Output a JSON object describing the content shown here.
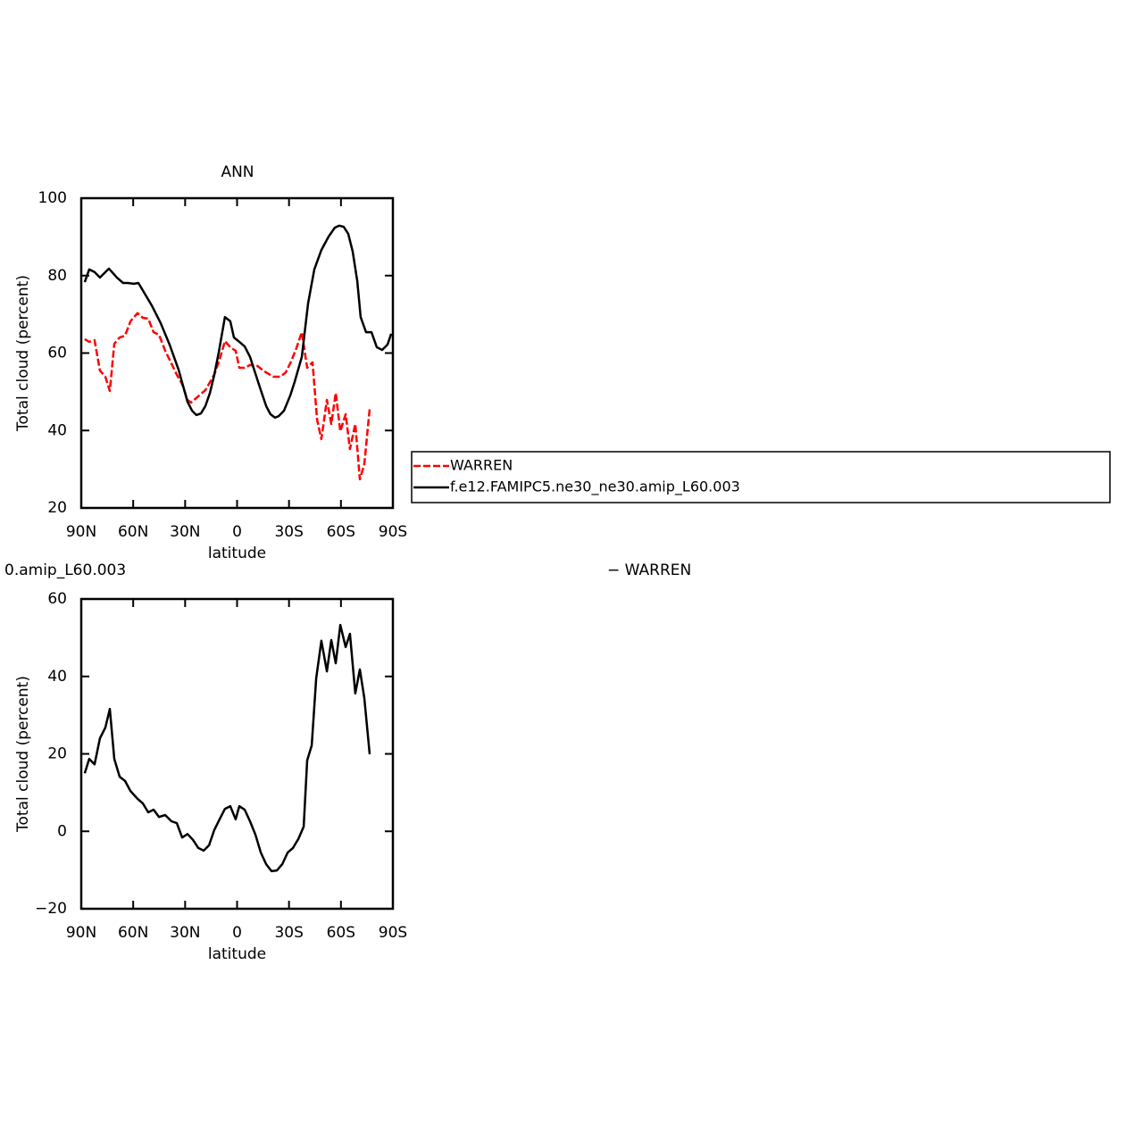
{
  "chart_data": [
    {
      "type": "line",
      "title": "ANN",
      "xlabel": "latitude",
      "ylabel": "Total cloud (percent)",
      "xlim": [
        90,
        -90
      ],
      "xticks": [
        {
          "value": 90,
          "label": "90N"
        },
        {
          "value": 60,
          "label": "60N"
        },
        {
          "value": 30,
          "label": "30N"
        },
        0,
        {
          "value": -30,
          "label": "30S"
        },
        {
          "value": -60,
          "label": "60S"
        },
        {
          "value": -90,
          "label": "90S"
        }
      ],
      "ylim": [
        20,
        100
      ],
      "yticks": [
        20,
        40,
        60,
        80,
        100
      ],
      "series": [
        {
          "name": "WARREN",
          "color": "#ff0000",
          "dashed": true,
          "x": [
            88,
            85.4,
            82.3,
            79.2,
            76.1,
            73.5,
            70.9,
            67.8,
            64.7,
            61.6,
            57.5,
            54.4,
            51.3,
            48.2,
            45.1,
            41.5,
            37.9,
            34.8,
            31.7,
            28.6,
            26.6,
            23.5,
            18.3,
            13.2,
            10.1,
            7,
            3.9,
            0.8,
            -1.3,
            -4.4,
            -7.5,
            -11.6,
            -15.7,
            -20.9,
            -25,
            -28.1,
            -31.2,
            -34.3,
            -37.4,
            -40.5,
            -43.6,
            -46.2,
            -48.7,
            -51.9,
            -54.4,
            -57,
            -59.6,
            -62.7,
            -65.2,
            -68.3,
            -70.9,
            -73.5,
            -76.6
          ],
          "values": [
            63.6,
            62.9,
            63.3,
            55.5,
            53.9,
            50.2,
            62.4,
            64,
            64.5,
            68.2,
            70.3,
            69.1,
            68.9,
            65.4,
            64.7,
            60.6,
            57.3,
            54.4,
            52,
            47.9,
            47.2,
            48.4,
            50.4,
            54.4,
            58.3,
            63.1,
            61.5,
            60.6,
            56.2,
            56.2,
            56.9,
            56.7,
            55.3,
            53.9,
            53.9,
            55,
            57.8,
            61.3,
            65.4,
            56.2,
            57.6,
            42.8,
            37.8,
            47.9,
            41.7,
            49.7,
            39.8,
            44.2,
            35.2,
            41.7,
            27.4,
            31.3,
            45.6
          ]
        },
        {
          "name": "f.e12.FAMIPC5.ne30_ne30.amip_L60.003",
          "color": "#000000",
          "dashed": false,
          "x": [
            88,
            85.4,
            82.3,
            79.2,
            74,
            69.4,
            65.8,
            63.2,
            59.6,
            57,
            49.3,
            44.1,
            39,
            33.8,
            28.6,
            26,
            23.5,
            20.9,
            18.3,
            15.7,
            13.2,
            10.6,
            7,
            3.9,
            1.8,
            -1.3,
            -4.4,
            -7.5,
            -10,
            -13.7,
            -16.8,
            -19.3,
            -21.9,
            -24,
            -27.1,
            -30.7,
            -33.2,
            -37.4,
            -41,
            -44.6,
            -48.7,
            -52.9,
            -56.5,
            -59,
            -61.6,
            -64.2,
            -66.8,
            -69.4,
            -71.4,
            -74.5,
            -77.6,
            -80.7,
            -83.8,
            -86.9,
            -89
          ],
          "values": [
            78.3,
            81.6,
            80.9,
            79.5,
            81.8,
            79.5,
            78.1,
            78.1,
            77.9,
            78.1,
            72.3,
            67.7,
            62.2,
            55.7,
            47.4,
            45.1,
            44,
            44.4,
            46.3,
            49.7,
            54.3,
            60.1,
            69.3,
            68.2,
            64,
            62.9,
            61.7,
            59,
            55.5,
            50.4,
            46.3,
            44.2,
            43.3,
            43.7,
            45.1,
            49,
            52.5,
            59,
            72.8,
            81.6,
            86.6,
            90.1,
            92.4,
            92.9,
            92.6,
            90.8,
            86.2,
            78.6,
            69.3,
            65.4,
            65.4,
            61.5,
            60.8,
            62.2,
            65
          ]
        }
      ]
    },
    {
      "type": "line",
      "title_left": "0.amip_L60.003",
      "title_right": "− WARREN",
      "xlabel": "latitude",
      "ylabel": "Total cloud (percent)",
      "xlim": [
        90,
        -90
      ],
      "xticks": [
        {
          "value": 90,
          "label": "90N"
        },
        {
          "value": 60,
          "label": "60N"
        },
        {
          "value": 30,
          "label": "30N"
        },
        0,
        {
          "value": -30,
          "label": "30S"
        },
        {
          "value": -60,
          "label": "60S"
        },
        {
          "value": -90,
          "label": "90S"
        }
      ],
      "ylim": [
        -20,
        60
      ],
      "yticks": [
        {
          "value": -20,
          "label": "−20"
        },
        0,
        20,
        40,
        60
      ],
      "series": [
        {
          "color": "#000000",
          "dashed": false,
          "x": [
            88,
            85.4,
            82.3,
            79.2,
            76.1,
            73.5,
            70.9,
            67.8,
            64.7,
            61.6,
            57.5,
            54.4,
            51.3,
            48.2,
            45.1,
            41.5,
            37.9,
            34.8,
            31.7,
            28.6,
            25.5,
            22.4,
            19.3,
            16.2,
            13.2,
            10.1,
            7,
            3.9,
            0.8,
            -1.3,
            -4.4,
            -7.5,
            -10.6,
            -13.7,
            -16.8,
            -19.9,
            -23,
            -26.1,
            -29.2,
            -32.3,
            -35.4,
            -38.5,
            -40.5,
            -43.1,
            -45.7,
            -48.7,
            -51.9,
            -54.4,
            -57,
            -59.6,
            -62.7,
            -65.2,
            -68.3,
            -70.9,
            -73.5,
            -76.6
          ],
          "values": [
            15,
            18.7,
            17.3,
            24,
            26.8,
            31.6,
            18.7,
            14.1,
            13,
            10.4,
            8.4,
            7.2,
            4.9,
            5.6,
            3.7,
            4.2,
            2.6,
            2.1,
            -1.6,
            -0.7,
            -2.2,
            -4.3,
            -5,
            -3.6,
            0.3,
            3.1,
            5.8,
            6.5,
            3.1,
            6.5,
            5.6,
            2.6,
            -0.9,
            -5.5,
            -8.5,
            -10.3,
            -10.1,
            -8.5,
            -5.5,
            -4.3,
            -2,
            1.2,
            18.3,
            22.2,
            39.5,
            49.2,
            41.3,
            49.4,
            43.4,
            53.3,
            47.6,
            51,
            35.6,
            41.8,
            34.4,
            19.9
          ]
        }
      ]
    }
  ]
}
